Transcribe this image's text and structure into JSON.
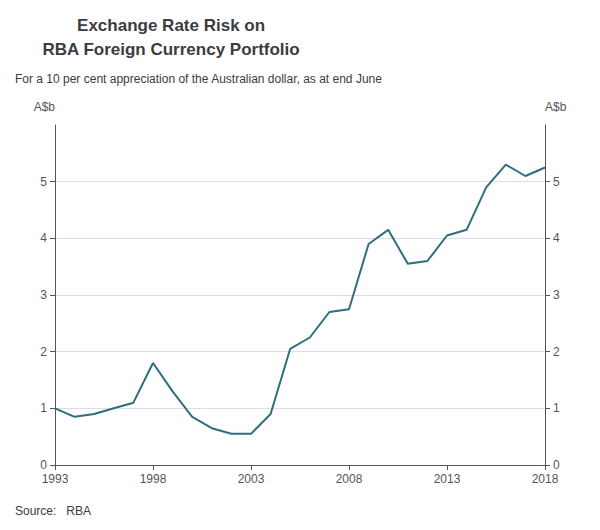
{
  "chart_data": {
    "type": "line",
    "title": "Exchange Rate Risk on\nRBA Foreign Currency Portfolio",
    "subtitle": "For a 10 per cent appreciation of the Australian dollar, as at end June",
    "ylabel": "A$b",
    "y2label": "A$b",
    "annotations": [
      "Source:   RBA"
    ],
    "x": [
      1993,
      1994,
      1995,
      1996,
      1997,
      1998,
      1999,
      2000,
      2001,
      2002,
      2003,
      2004,
      2005,
      2006,
      2007,
      2008,
      2009,
      2010,
      2011,
      2012,
      2013,
      2014,
      2015,
      2016,
      2017,
      2018
    ],
    "values": [
      1.0,
      0.85,
      0.9,
      1.0,
      1.1,
      1.8,
      1.3,
      0.85,
      0.65,
      0.55,
      0.55,
      0.9,
      2.05,
      2.25,
      2.7,
      2.75,
      3.9,
      4.15,
      3.55,
      3.6,
      4.05,
      4.15,
      4.9,
      5.3,
      5.1,
      5.25
    ],
    "color": "#2e6e7e",
    "xlim": [
      1993,
      2018
    ],
    "xticks": [
      1993,
      1998,
      2003,
      2008,
      2013,
      2018
    ],
    "ylim": [
      0,
      6
    ],
    "yticks": [
      0,
      1,
      2,
      3,
      4,
      5
    ],
    "y2lim": [
      0,
      6
    ],
    "y2ticks": [
      0,
      1,
      2,
      3,
      4,
      5
    ],
    "grid": true
  }
}
